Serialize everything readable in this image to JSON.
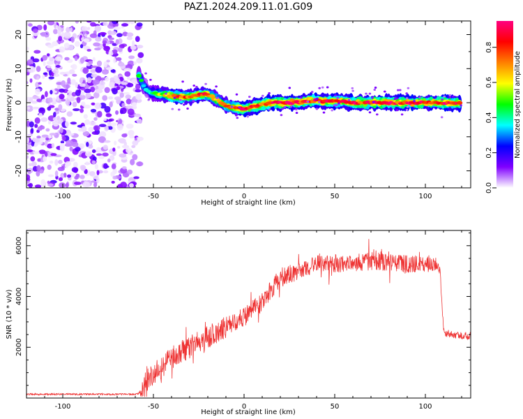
{
  "chart_data": [
    {
      "type": "heatmap",
      "title": "PAZ1.2024.209.11.01.G09",
      "xlabel": "Height of straight line (km)",
      "ylabel": "Frequency (Hz)",
      "xlim": [
        -120,
        125
      ],
      "ylim": [
        -25,
        24
      ],
      "xticks": [
        -100,
        -50,
        0,
        50,
        100
      ],
      "yticks": [
        -20,
        -10,
        0,
        10,
        20
      ],
      "colorbar": {
        "label": "Normalized spectral amplitude",
        "range": [
          0,
          0.95
        ],
        "ticks": [
          "0.0",
          "0.2",
          "0.4",
          "0.6",
          "0.8"
        ],
        "colormap": [
          "#ffffff",
          "#8000ff",
          "#0000ff",
          "#00ffff",
          "#00ff00",
          "#ffff00",
          "#ff8000",
          "#ff0000",
          "#ff0080"
        ]
      },
      "noise_region_x": [
        -120,
        -58
      ],
      "ridge": [
        {
          "x": -58,
          "y": 8,
          "amp": 0.45
        },
        {
          "x": -57,
          "y": 7,
          "amp": 0.45
        },
        {
          "x": -56,
          "y": 5.5,
          "amp": 0.4
        },
        {
          "x": -54,
          "y": 4,
          "amp": 0.35
        },
        {
          "x": -52,
          "y": 3,
          "amp": 0.4
        },
        {
          "x": -48,
          "y": 2.5,
          "amp": 0.5
        },
        {
          "x": -45,
          "y": 2.5,
          "amp": 0.55
        },
        {
          "x": -40,
          "y": 2,
          "amp": 0.75
        },
        {
          "x": -35,
          "y": 1.7,
          "amp": 0.8
        },
        {
          "x": -30,
          "y": 1.7,
          "amp": 0.7
        },
        {
          "x": -25,
          "y": 2.3,
          "amp": 0.75
        },
        {
          "x": -21,
          "y": 2.6,
          "amp": 0.8
        },
        {
          "x": -17,
          "y": 1.5,
          "amp": 0.65
        },
        {
          "x": -14,
          "y": 0.5,
          "amp": 0.6
        },
        {
          "x": -10,
          "y": -0.8,
          "amp": 0.7
        },
        {
          "x": -5,
          "y": -1.5,
          "amp": 0.75
        },
        {
          "x": 0,
          "y": -1.8,
          "amp": 0.85
        },
        {
          "x": 5,
          "y": -1.2,
          "amp": 0.85
        },
        {
          "x": 10,
          "y": -0.5,
          "amp": 0.8
        },
        {
          "x": 15,
          "y": 0,
          "amp": 0.85
        },
        {
          "x": 20,
          "y": 0,
          "amp": 0.85
        },
        {
          "x": 25,
          "y": 0,
          "amp": 0.9
        },
        {
          "x": 30,
          "y": 0.1,
          "amp": 0.85
        },
        {
          "x": 35,
          "y": 0.5,
          "amp": 0.8
        },
        {
          "x": 40,
          "y": 0.6,
          "amp": 0.85
        },
        {
          "x": 45,
          "y": 0.4,
          "amp": 0.8
        },
        {
          "x": 50,
          "y": 0.5,
          "amp": 0.85
        },
        {
          "x": 55,
          "y": 0.3,
          "amp": 0.8
        },
        {
          "x": 60,
          "y": 0,
          "amp": 0.85
        },
        {
          "x": 65,
          "y": 0,
          "amp": 0.8
        },
        {
          "x": 70,
          "y": 0,
          "amp": 0.85
        },
        {
          "x": 75,
          "y": 0,
          "amp": 0.9
        },
        {
          "x": 80,
          "y": 0,
          "amp": 0.85
        },
        {
          "x": 85,
          "y": 0,
          "amp": 0.8
        },
        {
          "x": 90,
          "y": 0,
          "amp": 0.85
        },
        {
          "x": 95,
          "y": 0,
          "amp": 0.9
        },
        {
          "x": 100,
          "y": 0,
          "amp": 0.85
        },
        {
          "x": 105,
          "y": 0,
          "amp": 0.8
        },
        {
          "x": 110,
          "y": 0,
          "amp": 0.85
        },
        {
          "x": 115,
          "y": 0,
          "amp": 0.85
        },
        {
          "x": 120,
          "y": -0.3,
          "amp": 0.8
        }
      ]
    },
    {
      "type": "line",
      "xlabel": "Height of straight line (km)",
      "ylabel": "SNR (10 * v/v)",
      "xlim": [
        -120,
        125
      ],
      "ylim": [
        0,
        6600
      ],
      "xticks": [
        -100,
        -50,
        0,
        50,
        100
      ],
      "yticks": [
        2000,
        4000,
        6000
      ],
      "color": "#ee3333",
      "envelope": {
        "x": [
          -120,
          -60,
          -56,
          -54,
          -50,
          -45,
          -40,
          -30,
          -20,
          -10,
          0,
          10,
          15,
          20,
          30,
          40,
          50,
          60,
          70,
          80,
          90,
          100,
          107,
          108,
          109,
          110,
          115,
          125
        ],
        "y": [
          150,
          150,
          200,
          700,
          900,
          1200,
          1600,
          2000,
          2400,
          2800,
          3200,
          3800,
          4300,
          4700,
          5000,
          5300,
          5300,
          5300,
          5400,
          5400,
          5300,
          5300,
          5250,
          5000,
          4000,
          2600,
          2500,
          2450
        ]
      },
      "noise": {
        "x": [
          -120,
          -58,
          -55,
          -20,
          0,
          20,
          40,
          60,
          80,
          100,
          108,
          110,
          125
        ],
        "amp": [
          35,
          35,
          450,
          450,
          400,
          400,
          350,
          350,
          400,
          350,
          300,
          150,
          150
        ]
      }
    }
  ]
}
